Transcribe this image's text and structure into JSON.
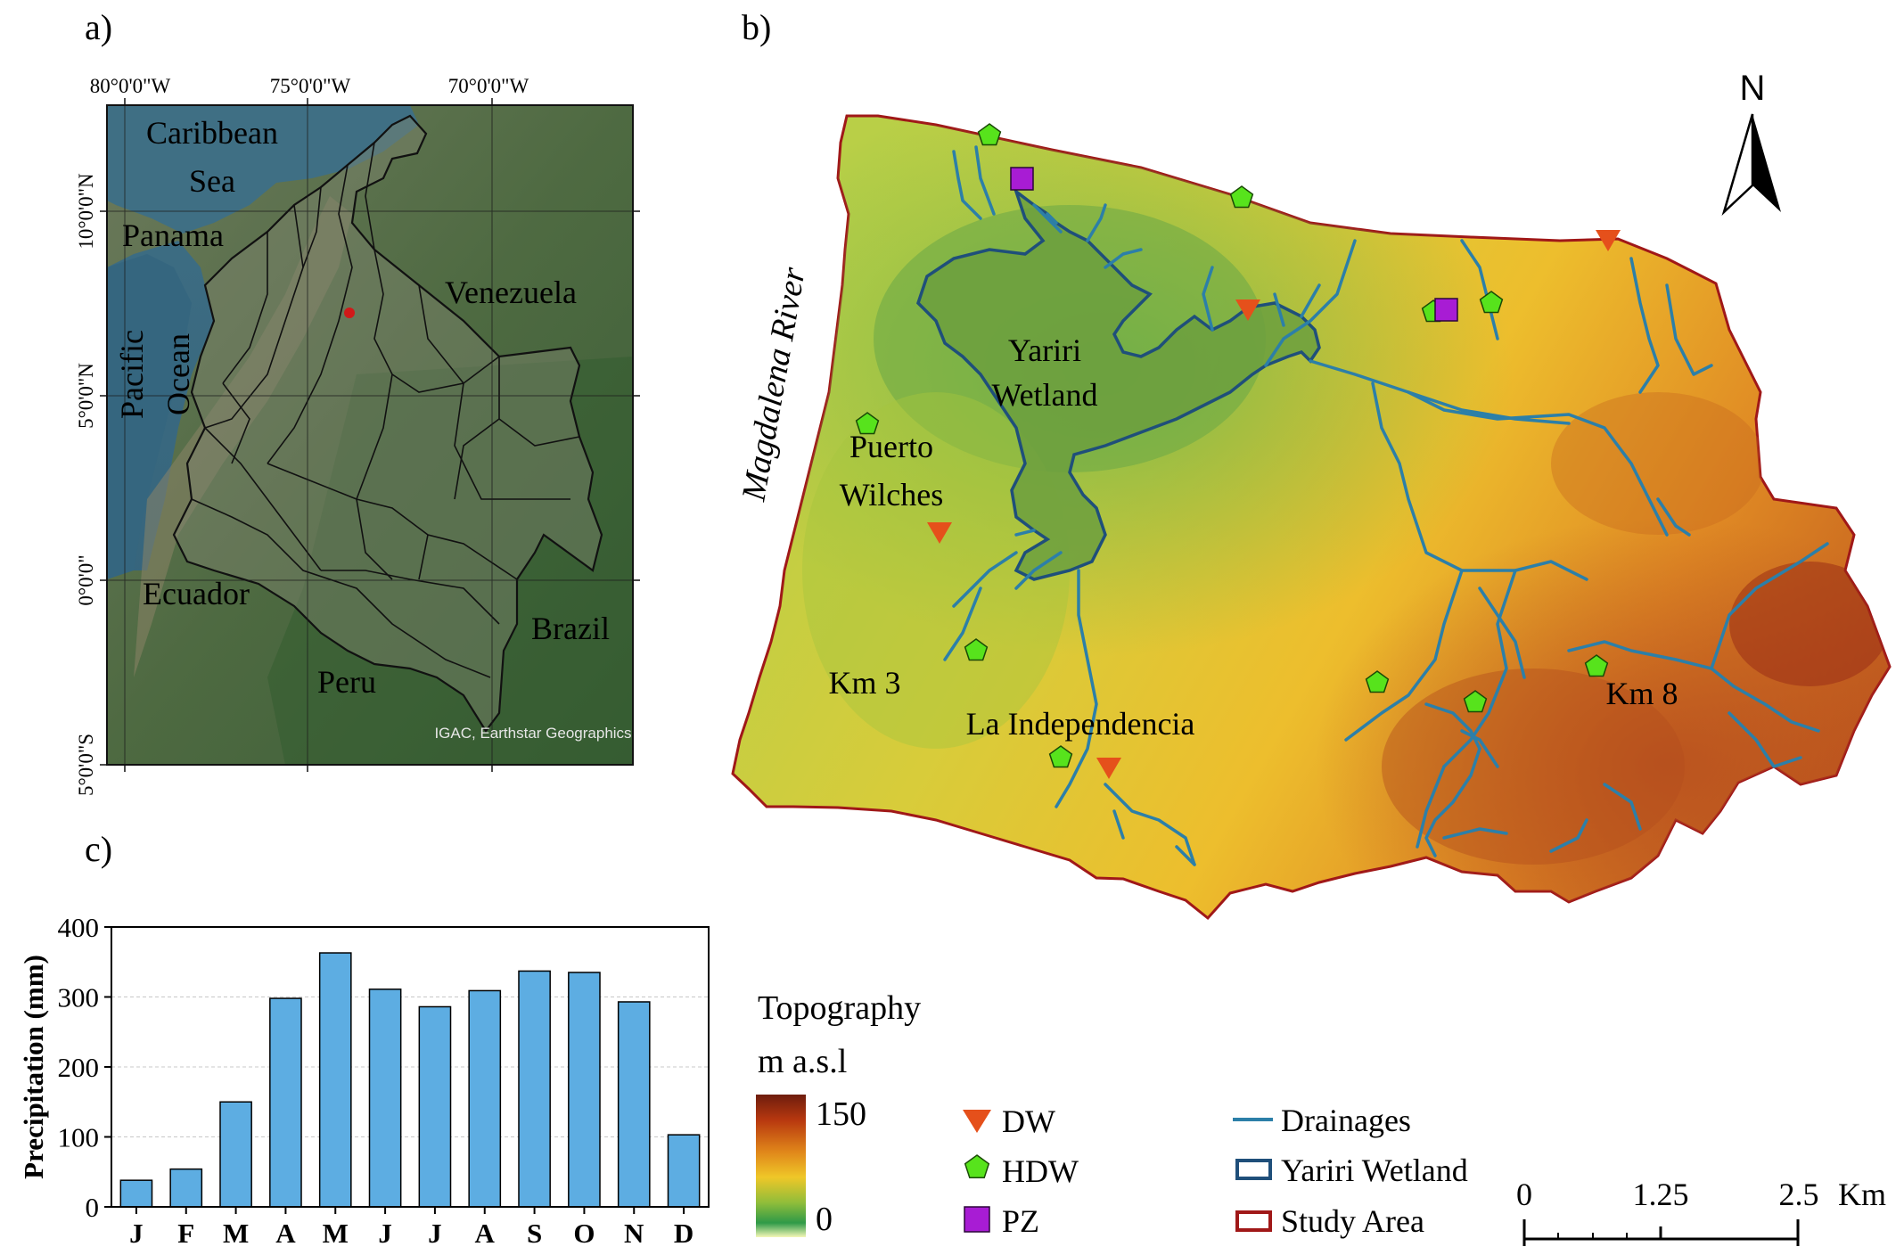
{
  "panels": {
    "a": "a)",
    "b": "b)",
    "c": "c)"
  },
  "panel_a": {
    "lon_labels": [
      "80°0'0\"W",
      "75°0'0\"W",
      "70°0'0\"W"
    ],
    "lat_labels": [
      "10°0'0\"N",
      "5°0'0\"N",
      "0°0'0\"",
      "5°0'0\"S"
    ],
    "places": {
      "caribbean_1": "Caribbean",
      "caribbean_2": "Sea",
      "panama": "Panama",
      "venezuela": "Venezuela",
      "pacific_1": "Pacific",
      "pacific_2": "Ocean",
      "ecuador": "Ecuador",
      "brazil": "Brazil",
      "peru": "Peru"
    },
    "credit": "IGAC, Earthstar Geographics"
  },
  "panel_b": {
    "north": "N",
    "river": "Magdalena River",
    "labels": {
      "yariri_1": "Yariri",
      "yariri_2": "Wetland",
      "puerto_1": "Puerto",
      "puerto_2": "Wilches",
      "km3": "Km 3",
      "independencia": "La Independencia",
      "km8": "Km 8"
    }
  },
  "legend": {
    "topo_title": "Topography",
    "topo_unit": "m a.s.l",
    "topo_max": "150",
    "topo_min": "0",
    "dw": "DW",
    "hdw": "HDW",
    "pz": "PZ",
    "drainages": "Drainages",
    "wetland": "Yariri Wetland",
    "study_area": "Study Area",
    "scale": [
      "0",
      "1.25",
      "2.5",
      "Km"
    ]
  },
  "colors": {
    "dw": "#e5501b",
    "hdw": "#57e31c",
    "pz": "#a81cd4",
    "drainage": "#2c7fa8",
    "wetland": "#1f4f7a",
    "study_area": "#a01818",
    "bar": "#5dade2"
  },
  "chart_data": {
    "type": "bar",
    "categories": [
      "J",
      "F",
      "M",
      "A",
      "M",
      "J",
      "J",
      "A",
      "S",
      "O",
      "N",
      "D"
    ],
    "values": [
      38,
      54,
      150,
      298,
      363,
      311,
      286,
      309,
      337,
      335,
      293,
      103
    ],
    "ylabel": "Precipitation (mm)",
    "ylim": [
      0,
      400
    ],
    "yticks": [
      "0",
      "100",
      "200",
      "300",
      "400"
    ],
    "grid": true
  }
}
